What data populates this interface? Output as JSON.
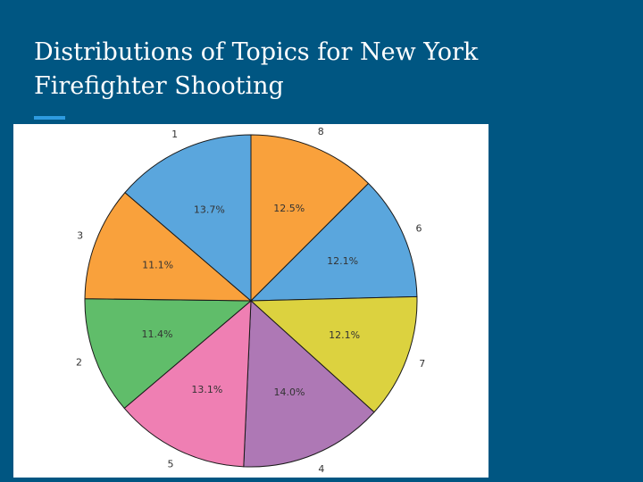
{
  "slide": {
    "title_line1": "Distributions of Topics for New York",
    "title_line2": "Firefighter Shooting"
  },
  "chart_data": {
    "type": "pie",
    "title": "",
    "start_angle_deg": 90,
    "direction": "clockwise",
    "slices": [
      {
        "label": "8",
        "value": 12.5,
        "pct_text": "12.5%",
        "color": "#f9a13c"
      },
      {
        "label": "6",
        "value": 12.1,
        "pct_text": "12.1%",
        "color": "#5aa6dd"
      },
      {
        "label": "7",
        "value": 12.1,
        "pct_text": "12.1%",
        "color": "#dcd23f"
      },
      {
        "label": "4",
        "value": 14.0,
        "pct_text": "14.0%",
        "color": "#ae78b5"
      },
      {
        "label": "5",
        "value": 13.1,
        "pct_text": "13.1%",
        "color": "#ef7fb3"
      },
      {
        "label": "2",
        "value": 11.4,
        "pct_text": "11.4%",
        "color": "#60bd6a"
      },
      {
        "label": "3",
        "value": 11.1,
        "pct_text": "11.1%",
        "color": "#f9a13c"
      },
      {
        "label": "1",
        "value": 13.7,
        "pct_text": "13.7%",
        "color": "#5aa6dd"
      }
    ]
  }
}
